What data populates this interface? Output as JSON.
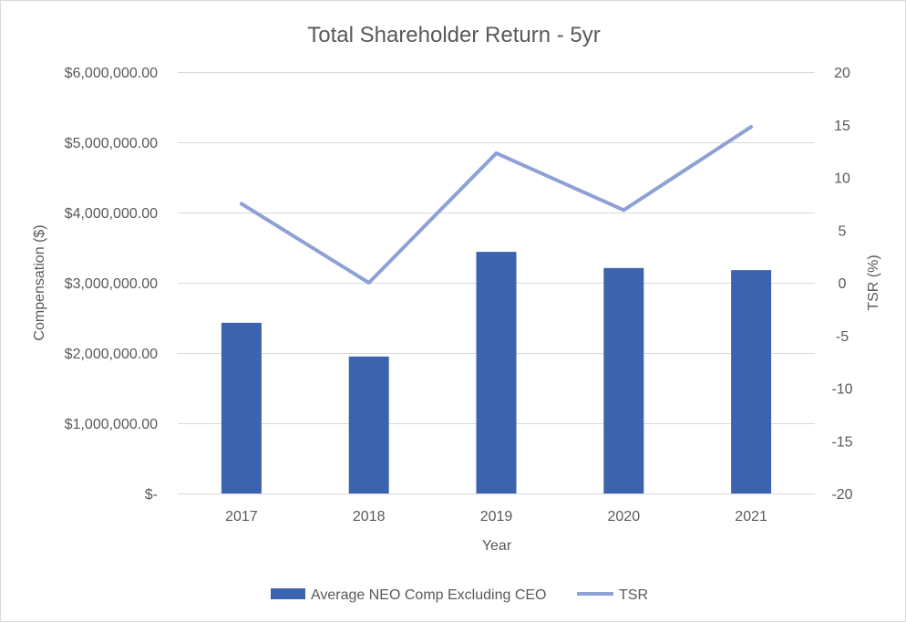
{
  "chart_data": {
    "type": "bar+line",
    "title": "Total Shareholder Return - 5yr",
    "xlabel": "Year",
    "ylabel": "Compensation ($)",
    "y2label": "TSR (%)",
    "categories": [
      "2017",
      "2018",
      "2019",
      "2020",
      "2021"
    ],
    "ylim": [
      0,
      6000000
    ],
    "y_ticks": [
      0,
      1000000,
      2000000,
      3000000,
      4000000,
      5000000,
      6000000
    ],
    "y_tick_labels": [
      "$-",
      "$1,000,000.00",
      "$2,000,000.00",
      "$3,000,000.00",
      "$4,000,000.00",
      "$5,000,000.00",
      "$6,000,000.00"
    ],
    "y2lim": [
      -20,
      20
    ],
    "y2_ticks": [
      -20,
      -15,
      -10,
      -5,
      0,
      5,
      10,
      15,
      20
    ],
    "y2_tick_labels": [
      "-20",
      "-15",
      "-10",
      "-5",
      "0",
      "5",
      "10",
      "15",
      "20"
    ],
    "grid": true,
    "legend_position": "bottom",
    "series": [
      {
        "name": "Average NEO Comp Excluding CEO",
        "type": "bar",
        "axis": "left",
        "color": "#3c63ad",
        "values": [
          2430000,
          1950000,
          3440000,
          3210000,
          3180000
        ]
      },
      {
        "name": "TSR",
        "type": "line",
        "axis": "right",
        "color": "#8ea1d4",
        "values": [
          7.5,
          0.0,
          12.3,
          6.9,
          14.8
        ]
      }
    ]
  }
}
